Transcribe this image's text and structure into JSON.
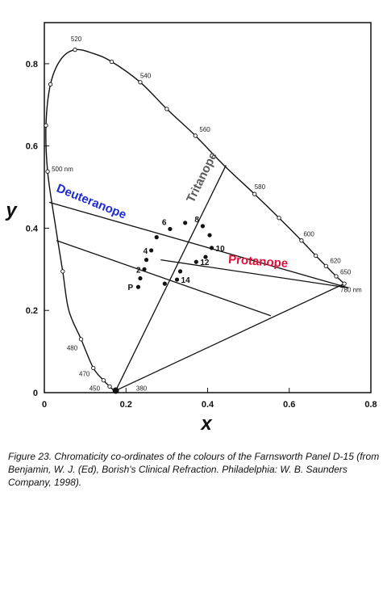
{
  "chart_data": {
    "type": "scatter",
    "title": "",
    "xlabel": "x",
    "ylabel": "y",
    "xlim": [
      0,
      0.8
    ],
    "ylim": [
      0,
      0.9
    ],
    "x_ticks": [
      {
        "value": 0,
        "label": "0"
      },
      {
        "value": 0.2,
        "label": "0.2"
      },
      {
        "value": 0.4,
        "label": "0.4"
      },
      {
        "value": 0.6,
        "label": "0.6"
      },
      {
        "value": 0.8,
        "label": "0.8"
      }
    ],
    "y_ticks": [
      {
        "value": 0,
        "label": "0"
      },
      {
        "value": 0.2,
        "label": "0.2"
      },
      {
        "value": 0.4,
        "label": "0.4"
      },
      {
        "value": 0.6,
        "label": "0.6"
      },
      {
        "value": 0.8,
        "label": "0.8"
      }
    ],
    "spectral_locus": [
      {
        "x": 0.175,
        "y": 0.005
      },
      {
        "x": 0.17,
        "y": 0.006
      },
      {
        "x": 0.16,
        "y": 0.015
      },
      {
        "x": 0.145,
        "y": 0.03
      },
      {
        "x": 0.12,
        "y": 0.06
      },
      {
        "x": 0.09,
        "y": 0.13
      },
      {
        "x": 0.06,
        "y": 0.2
      },
      {
        "x": 0.045,
        "y": 0.295
      },
      {
        "x": 0.025,
        "y": 0.42
      },
      {
        "x": 0.008,
        "y": 0.538
      },
      {
        "x": 0.004,
        "y": 0.65
      },
      {
        "x": 0.015,
        "y": 0.75
      },
      {
        "x": 0.04,
        "y": 0.81
      },
      {
        "x": 0.075,
        "y": 0.834
      },
      {
        "x": 0.12,
        "y": 0.825
      },
      {
        "x": 0.165,
        "y": 0.805
      },
      {
        "x": 0.235,
        "y": 0.755
      },
      {
        "x": 0.3,
        "y": 0.69
      },
      {
        "x": 0.37,
        "y": 0.625
      },
      {
        "x": 0.44,
        "y": 0.553
      },
      {
        "x": 0.515,
        "y": 0.483
      },
      {
        "x": 0.575,
        "y": 0.425
      },
      {
        "x": 0.63,
        "y": 0.37
      },
      {
        "x": 0.665,
        "y": 0.333
      },
      {
        "x": 0.69,
        "y": 0.308
      },
      {
        "x": 0.715,
        "y": 0.283
      },
      {
        "x": 0.735,
        "y": 0.265
      }
    ],
    "locus_markers": [
      {
        "x": 0.175,
        "y": 0.005
      },
      {
        "x": 0.16,
        "y": 0.015
      },
      {
        "x": 0.145,
        "y": 0.03
      },
      {
        "x": 0.12,
        "y": 0.06
      },
      {
        "x": 0.09,
        "y": 0.13
      },
      {
        "x": 0.045,
        "y": 0.295
      },
      {
        "x": 0.008,
        "y": 0.538
      },
      {
        "x": 0.004,
        "y": 0.65
      },
      {
        "x": 0.015,
        "y": 0.75
      },
      {
        "x": 0.075,
        "y": 0.834
      },
      {
        "x": 0.165,
        "y": 0.805
      },
      {
        "x": 0.235,
        "y": 0.755
      },
      {
        "x": 0.3,
        "y": 0.69
      },
      {
        "x": 0.37,
        "y": 0.625
      },
      {
        "x": 0.515,
        "y": 0.483
      },
      {
        "x": 0.575,
        "y": 0.425
      },
      {
        "x": 0.63,
        "y": 0.37
      },
      {
        "x": 0.665,
        "y": 0.333
      },
      {
        "x": 0.69,
        "y": 0.308
      },
      {
        "x": 0.715,
        "y": 0.283
      },
      {
        "x": 0.735,
        "y": 0.265
      }
    ],
    "wavelength_labels": [
      {
        "text": "520",
        "x": 0.065,
        "y": 0.855
      },
      {
        "text": "540",
        "x": 0.235,
        "y": 0.765
      },
      {
        "text": "560",
        "x": 0.38,
        "y": 0.635
      },
      {
        "text": "580",
        "x": 0.515,
        "y": 0.495
      },
      {
        "text": "600",
        "x": 0.635,
        "y": 0.38
      },
      {
        "text": "620",
        "x": 0.7,
        "y": 0.315
      },
      {
        "text": "650",
        "x": 0.725,
        "y": 0.288
      },
      {
        "text": "780 nm",
        "x": 0.725,
        "y": 0.245
      },
      {
        "text": "500 nm",
        "x": 0.018,
        "y": 0.538
      },
      {
        "text": "480",
        "x": 0.055,
        "y": 0.103
      },
      {
        "text": "470",
        "x": 0.085,
        "y": 0.04
      },
      {
        "text": "450",
        "x": 0.11,
        "y": 0.005
      },
      {
        "text": "380",
        "x": 0.225,
        "y": 0.005
      }
    ],
    "confusion_lines": [
      {
        "x1": 0.012,
        "y1": 0.463,
        "x2": 0.745,
        "y2": 0.255,
        "color": "#111111"
      },
      {
        "x1": 0.03,
        "y1": 0.37,
        "x2": 0.555,
        "y2": 0.187,
        "color": "#111111"
      },
      {
        "x1": 0.175,
        "y1": 0.005,
        "x2": 0.445,
        "y2": 0.553,
        "color": "#111111"
      },
      {
        "x1": 0.175,
        "y1": 0.005,
        "x2": 0.735,
        "y2": 0.265,
        "color": "#111111"
      },
      {
        "x1": 0.285,
        "y1": 0.323,
        "x2": 0.745,
        "y2": 0.255,
        "color": "#111111"
      }
    ],
    "points": [
      {
        "label": "P",
        "x": 0.23,
        "y": 0.257
      },
      {
        "label": "",
        "x": 0.235,
        "y": 0.278
      },
      {
        "label": "2",
        "x": 0.245,
        "y": 0.3
      },
      {
        "label": "",
        "x": 0.25,
        "y": 0.323
      },
      {
        "label": "4",
        "x": 0.262,
        "y": 0.346
      },
      {
        "label": "",
        "x": 0.275,
        "y": 0.378
      },
      {
        "label": "6",
        "x": 0.308,
        "y": 0.398
      },
      {
        "label": "",
        "x": 0.345,
        "y": 0.413
      },
      {
        "label": "8",
        "x": 0.388,
        "y": 0.405
      },
      {
        "label": "",
        "x": 0.405,
        "y": 0.383
      },
      {
        "label": "10",
        "x": 0.41,
        "y": 0.352
      },
      {
        "label": "",
        "x": 0.395,
        "y": 0.33
      },
      {
        "label": "12",
        "x": 0.372,
        "y": 0.318
      },
      {
        "label": "",
        "x": 0.333,
        "y": 0.295
      },
      {
        "label": "14",
        "x": 0.325,
        "y": 0.275
      },
      {
        "label": "",
        "x": 0.295,
        "y": 0.265
      }
    ],
    "white_point": {
      "x": 0.175,
      "y": 0.005
    },
    "series_labels": [
      {
        "text": "Deuteranope",
        "x": 0.028,
        "y": 0.49,
        "angle": 22,
        "color": "#1d2bd6"
      },
      {
        "text": "Tritanope",
        "x": 0.365,
        "y": 0.46,
        "angle": -64,
        "color": "#5a5a5a"
      },
      {
        "text": "Protanope",
        "x": 0.45,
        "y": 0.315,
        "angle": 4,
        "color": "#e0103a"
      }
    ]
  },
  "caption": "Figure 23. Chromaticity co-ordinates of the colours of the Farnsworth Panel D-15 (from Benjamin, W. J. (Ed), Borish's Clinical Refraction. Philadelphia: W. B. Saunders Company, 1998)."
}
